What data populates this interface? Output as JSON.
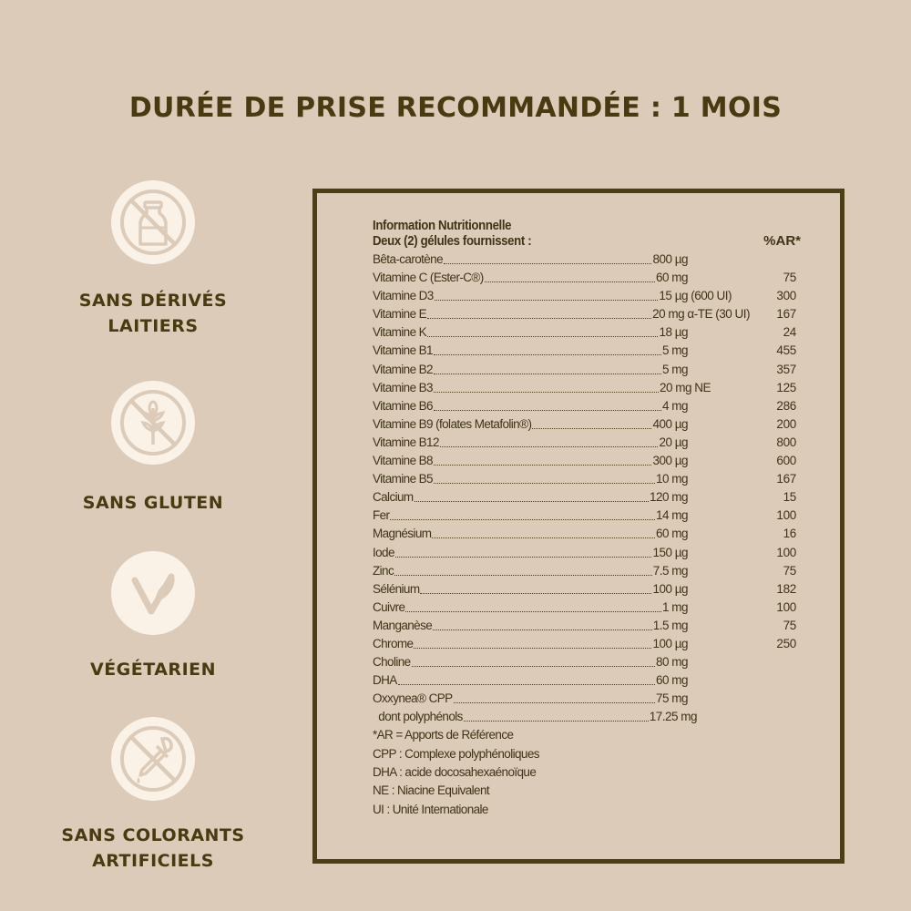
{
  "headline": "DURÉE DE PRISE RECOMMANDÉE : 1 MOIS",
  "badges": [
    {
      "icon": "no-dairy-bottle-icon",
      "line1": "SANS DÉRIVÉS",
      "line2": "LAITIERS"
    },
    {
      "icon": "no-gluten-wheat-icon",
      "line1": "SANS GLUTEN",
      "line2": ""
    },
    {
      "icon": "vegetarian-leaf-icon",
      "line1": "VÉGÉTARIEN",
      "line2": ""
    },
    {
      "icon": "no-colorants-dropper-icon",
      "line1": "SANS COLORANTS",
      "line2": "ARTIFICIELS"
    }
  ],
  "nutrition": {
    "title": "Information Nutritionnelle",
    "subtitle": "Deux (2) gélules fournissent :",
    "ar_header": "%AR*",
    "rows": [
      {
        "name": "Bêta-carotène",
        "amount": "800 µg",
        "ar": ""
      },
      {
        "name": "Vitamine C (Ester-C®)",
        "amount": "60 mg",
        "ar": "75"
      },
      {
        "name": "Vitamine D3",
        "amount": "15 µg (600 UI)",
        "ar": "300"
      },
      {
        "name": "Vitamine E",
        "amount": "20 mg α-TE (30 UI)",
        "ar": "167"
      },
      {
        "name": "Vitamine K",
        "amount": "18 µg",
        "ar": "24"
      },
      {
        "name": "Vitamine B1",
        "amount": "5 mg",
        "ar": "455"
      },
      {
        "name": "Vitamine B2",
        "amount": "5 mg",
        "ar": "357"
      },
      {
        "name": "Vitamine B3",
        "amount": "20 mg NE",
        "ar": "125"
      },
      {
        "name": "Vitamine B6",
        "amount": "4 mg",
        "ar": "286"
      },
      {
        "name": "Vitamine B9 (folates Metafolin®)",
        "amount": "400 µg",
        "ar": "200"
      },
      {
        "name": "Vitamine B12",
        "amount": "20 µg",
        "ar": "800"
      },
      {
        "name": "Vitamine B8",
        "amount": "300 µg",
        "ar": "600"
      },
      {
        "name": "Vitamine B5",
        "amount": "10 mg",
        "ar": "167"
      },
      {
        "name": "Calcium",
        "amount": "120 mg",
        "ar": "15"
      },
      {
        "name": "Fer",
        "amount": "14 mg",
        "ar": "100"
      },
      {
        "name": "Magnésium",
        "amount": "60 mg",
        "ar": "16"
      },
      {
        "name": "Iode",
        "amount": "150 µg",
        "ar": "100"
      },
      {
        "name": "Zinc",
        "amount": "7.5 mg",
        "ar": "75"
      },
      {
        "name": "Sélénium",
        "amount": "100 µg",
        "ar": "182"
      },
      {
        "name": "Cuivre",
        "amount": "1 mg",
        "ar": "100"
      },
      {
        "name": "Manganèse",
        "amount": "1.5 mg",
        "ar": "75"
      },
      {
        "name": "Chrome",
        "amount": "100 µg",
        "ar": "250"
      },
      {
        "name": "Choline",
        "amount": "80 mg",
        "ar": ""
      },
      {
        "name": "DHA",
        "amount": "60 mg",
        "ar": ""
      },
      {
        "name": "Oxxynea® CPP",
        "amount": "75 mg",
        "ar": ""
      },
      {
        "name": "  dont polyphénols",
        "amount": "17.25 mg",
        "ar": ""
      }
    ],
    "footnotes": [
      "*AR = Apports de Référence",
      "CPP : Complexe polyphénoliques",
      "DHA : acide docosahexaénoïque",
      "NE : Niacine Equivalent",
      "UI : Unité Internationale"
    ]
  }
}
